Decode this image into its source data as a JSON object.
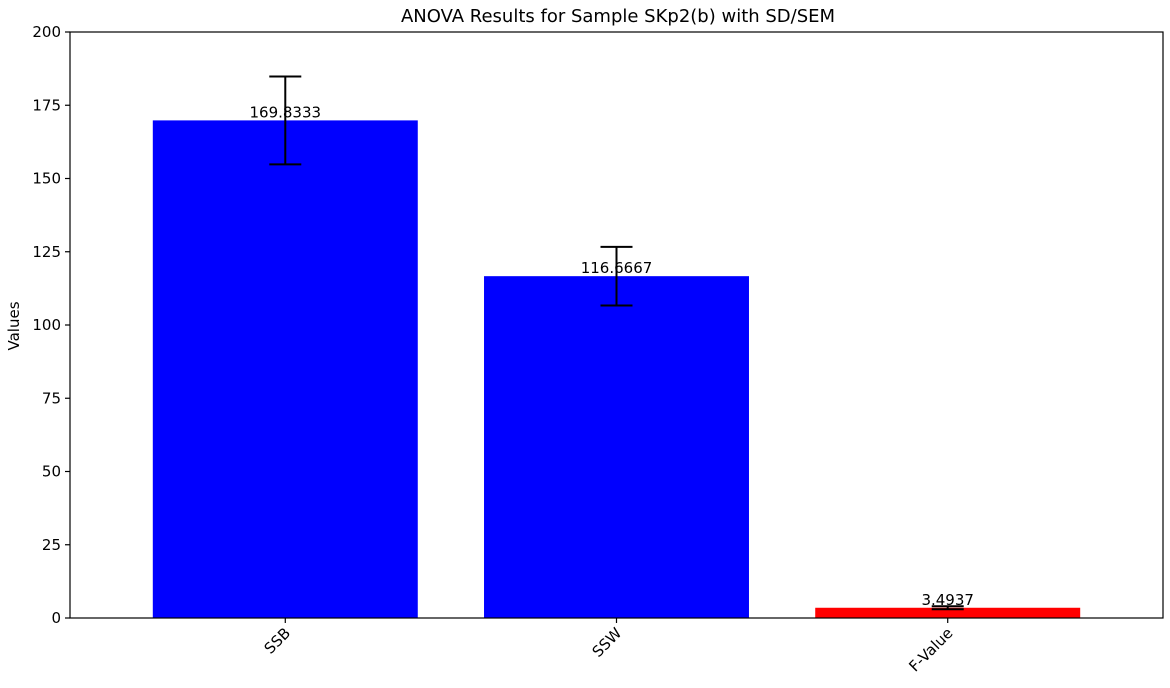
{
  "chart_data": {
    "type": "bar",
    "title": "ANOVA Results for Sample SKp2(b) with SD/SEM",
    "xlabel": "",
    "ylabel": "Values",
    "categories": [
      "SSB",
      "SSW",
      "F-Value"
    ],
    "values": [
      169.8333,
      116.6667,
      3.4937
    ],
    "value_labels": [
      "169.8333",
      "116.6667",
      "3.4937"
    ],
    "errors": [
      15.0,
      10.0,
      0.5
    ],
    "colors": [
      "#0000ff",
      "#0000ff",
      "#ff0000"
    ],
    "ylim": [
      0,
      200
    ],
    "yticks": [
      0,
      25,
      50,
      75,
      100,
      125,
      150,
      175,
      200
    ],
    "ytick_labels": [
      "0",
      "25",
      "50",
      "75",
      "100",
      "125",
      "150",
      "175",
      "200"
    ],
    "grid": false,
    "xtick_rotation_deg": 45
  }
}
